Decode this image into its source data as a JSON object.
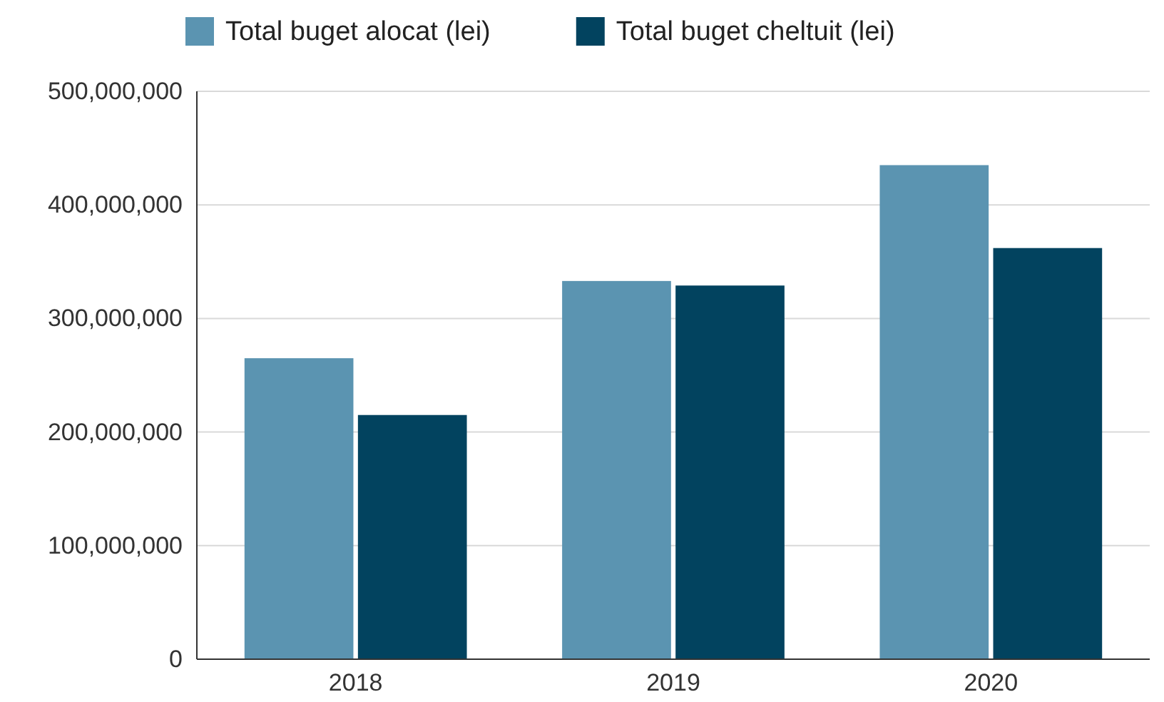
{
  "chart_data": {
    "type": "bar",
    "categories": [
      "2018",
      "2019",
      "2020"
    ],
    "series": [
      {
        "name": "Total buget alocat (lei)",
        "color": "#5b94b1",
        "values": [
          265000000,
          333000000,
          435000000
        ]
      },
      {
        "name": "Total buget cheltuit (lei)",
        "color": "#02435f",
        "values": [
          215000000,
          329000000,
          362000000
        ]
      }
    ],
    "ylim": [
      0,
      500000000
    ],
    "yticks": [
      {
        "value": 0,
        "label": "0"
      },
      {
        "value": 100000000,
        "label": "100,000,000"
      },
      {
        "value": 200000000,
        "label": "200,000,000"
      },
      {
        "value": 300000000,
        "label": "300,000,000"
      },
      {
        "value": 400000000,
        "label": "400,000,000"
      },
      {
        "value": 500000000,
        "label": "500,000,000"
      }
    ],
    "grid": "y",
    "legend": "top"
  }
}
